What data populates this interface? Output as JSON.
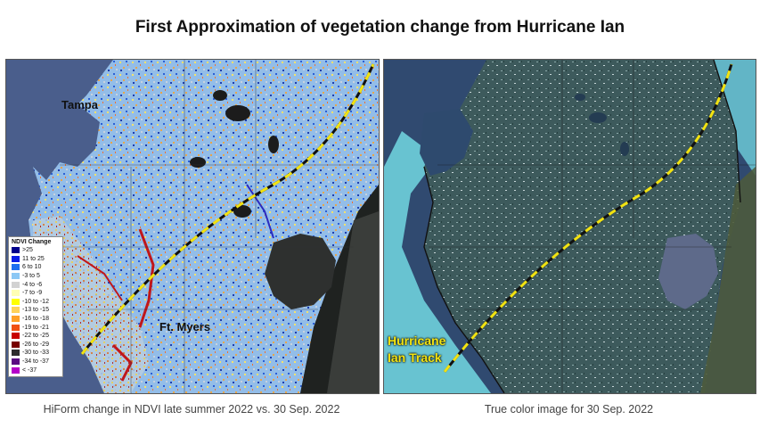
{
  "title": "First Approximation of vegetation change from Hurricane Ian",
  "left_panel": {
    "city_labels": [
      "Tampa",
      "Ft. Myers"
    ],
    "legend": {
      "title": "NDVI Change",
      "items": [
        {
          "label": ">25",
          "color": "#00008b"
        },
        {
          "label": "11 to 25",
          "color": "#0a1ee6"
        },
        {
          "label": "6 to 10",
          "color": "#1e6ef0"
        },
        {
          "label": "-3 to 5",
          "color": "#8cc8f5"
        },
        {
          "label": "-4 to -6",
          "color": "#d2d2d2"
        },
        {
          "label": "-7 to -9",
          "color": "#ffffb4"
        },
        {
          "label": "-10 to -12",
          "color": "#ffff00"
        },
        {
          "label": "-13 to -15",
          "color": "#ffd25a"
        },
        {
          "label": "-16 to -18",
          "color": "#ffa028"
        },
        {
          "label": "-19 to -21",
          "color": "#f05014"
        },
        {
          "label": "-22 to -25",
          "color": "#c80000"
        },
        {
          "label": "-26 to -29",
          "color": "#780000"
        },
        {
          "label": "-30 to -33",
          "color": "#2d2d2d"
        },
        {
          "label": "-34 to -37",
          "color": "#5a0a82"
        },
        {
          "label": "< -37",
          "color": "#b400c8"
        }
      ]
    },
    "caption": "HiForm change in NDVI late summer 2022 vs. 30 Sep. 2022"
  },
  "right_panel": {
    "track_label": [
      "Hurricane",
      "Ian Track"
    ],
    "caption": "True color image for 30 Sep. 2022"
  },
  "colors": {
    "track_yellow": "#f2e311",
    "track_dark": "#111111",
    "gulf_left": "#4a5e8c",
    "land_left": "#93bde8",
    "gulf_right": "#304a70",
    "land_right": "#3d5a5c",
    "shallow_water": "#6fd0dc"
  }
}
